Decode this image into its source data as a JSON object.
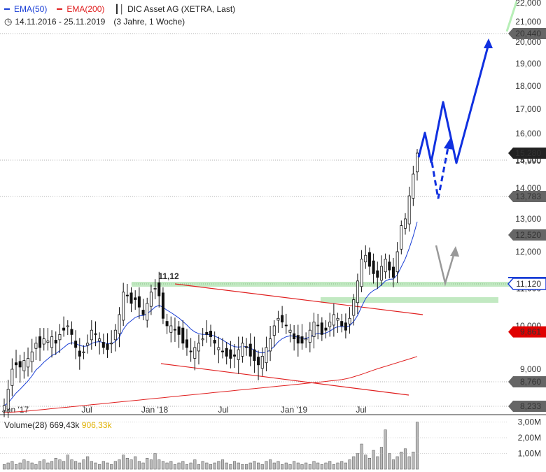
{
  "legend": {
    "ema50_label": "EMA(50)",
    "ema200_label": "EMA(200)",
    "instrument": "DIC Asset AG (XETRA, Last)",
    "date_range": "14.11.2016 - 25.11.2019",
    "period": "(3 Jahre, 1 Woche)"
  },
  "volume_legend": {
    "label": "Volume(28)",
    "value1": "669,43k",
    "value2": "906,33k"
  },
  "colors": {
    "ema50": "#1a3fd6",
    "ema200": "#e02020",
    "candle": "#111111",
    "support_zone": "#bfe8bf",
    "arrow_blue": "#1030e0",
    "arrow_gray": "#999999",
    "price_tag_dark": "#222222",
    "price_tag_gray": "#666666",
    "price_tag_red": "#e00000",
    "price_tag_blue": "#1a3fd6",
    "volume_bar": "#bbbbbb"
  },
  "chart_data": {
    "type": "candlestick",
    "title": "DIC Asset AG (XETRA, Last)",
    "y_axis_ticks": [
      "9,000",
      "10,000",
      "11,000",
      "12,000",
      "13,000",
      "14,000",
      "15,000",
      "16,000",
      "17,000",
      "18,000",
      "19,000",
      "20,000",
      "21,000",
      "22,000"
    ],
    "x_axis_ticks": [
      "Jan '17",
      "Jul",
      "Jan '18",
      "Jul",
      "Jan '19",
      "Jul"
    ],
    "annotation_high": "11,12",
    "price_tags": [
      {
        "label": "20,440",
        "style": "gray"
      },
      {
        "label": "15,280",
        "style": "dark"
      },
      {
        "label": "14,990",
        "style": "plain"
      },
      {
        "label": "13,783",
        "style": "gray"
      },
      {
        "label": "12,520",
        "style": "gray"
      },
      {
        "label": "11,120",
        "style": "blue"
      },
      {
        "label": "9,861",
        "style": "red"
      },
      {
        "label": "8,760",
        "style": "gray"
      },
      {
        "label": "8,233",
        "style": "gray"
      }
    ],
    "closes": [
      8.25,
      8.6,
      9.0,
      9.1,
      9.05,
      9.2,
      9.25,
      9.4,
      9.6,
      9.5,
      9.7,
      9.65,
      9.75,
      9.6,
      9.8,
      9.9,
      10.0,
      9.8,
      9.5,
      9.3,
      9.4,
      9.6,
      9.9,
      9.8,
      9.7,
      9.5,
      9.45,
      9.6,
      9.9,
      10.3,
      10.9,
      10.8,
      10.6,
      10.7,
      10.5,
      10.3,
      10.6,
      10.9,
      11.0,
      10.8,
      10.2,
      10.0,
      10.0,
      9.9,
      9.8,
      9.6,
      9.5,
      9.4,
      9.5,
      9.6,
      9.7,
      9.8,
      9.75,
      9.6,
      9.5,
      9.4,
      9.3,
      9.25,
      9.3,
      9.45,
      9.6,
      9.5,
      9.3,
      9.2,
      9.1,
      9.3,
      9.5,
      9.7,
      10.0,
      10.2,
      10.1,
      10.0,
      9.9,
      9.7,
      9.6,
      9.6,
      9.7,
      9.9,
      10.1,
      10.0,
      9.8,
      9.9,
      10.1,
      10.3,
      10.2,
      10.0,
      9.9,
      10.2,
      10.7,
      11.2,
      11.8,
      11.9,
      11.6,
      11.4,
      11.3,
      11.6,
      11.8,
      11.5,
      11.3,
      12.0,
      12.8,
      13.0,
      13.8,
      14.5,
      15.28
    ],
    "ema50_label": "EMA(50)",
    "ema200_label": "EMA(200)",
    "volume_axis_ticks": [
      "1,00M",
      "2,00M",
      "3,00M"
    ],
    "volume_values_m": [
      0.3,
      0.4,
      0.5,
      0.3,
      0.4,
      0.6,
      0.5,
      0.4,
      0.3,
      0.5,
      0.6,
      0.4,
      0.5,
      0.7,
      0.6,
      0.5,
      0.9,
      0.6,
      0.5,
      0.4,
      0.6,
      0.8,
      0.5,
      0.4,
      0.3,
      0.5,
      0.4,
      0.3,
      0.5,
      0.6,
      0.9,
      0.7,
      0.6,
      0.8,
      0.5,
      0.4,
      0.7,
      0.6,
      1.0,
      0.6,
      0.5,
      0.4,
      0.5,
      0.3,
      0.4,
      0.5,
      0.3,
      0.4,
      0.6,
      0.3,
      0.5,
      0.4,
      0.3,
      0.4,
      0.5,
      0.6,
      0.4,
      0.3,
      0.5,
      0.4,
      0.3,
      0.3,
      0.4,
      0.5,
      0.4,
      0.3,
      0.5,
      0.6,
      0.4,
      0.5,
      0.3,
      0.4,
      0.3,
      0.5,
      0.4,
      0.3,
      0.4,
      0.3,
      0.5,
      0.4,
      0.3,
      0.4,
      0.5,
      0.3,
      0.4,
      0.5,
      0.4,
      0.6,
      0.8,
      1.0,
      1.6,
      0.9,
      0.7,
      1.2,
      0.8,
      1.4,
      2.5,
      1.0,
      0.6,
      0.8,
      1.1,
      1.3,
      0.8,
      1.1,
      3.0
    ]
  }
}
